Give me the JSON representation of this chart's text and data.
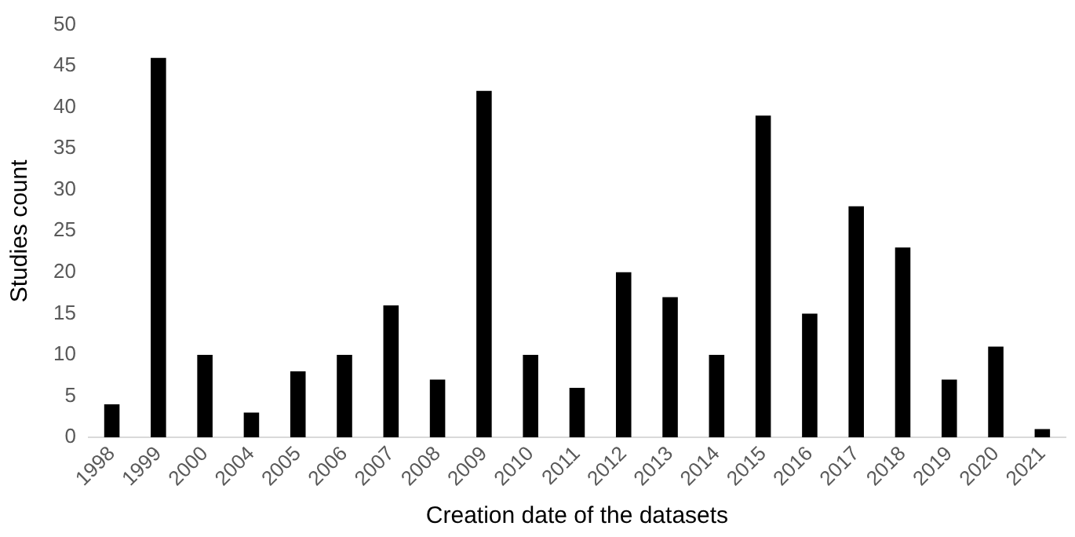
{
  "chart_data": {
    "type": "bar",
    "xlabel": "Creation date of the datasets",
    "ylabel": "Studies count",
    "categories": [
      "1998",
      "1999",
      "2000",
      "2004",
      "2005",
      "2006",
      "2007",
      "2008",
      "2009",
      "2010",
      "2011",
      "2012",
      "2013",
      "2014",
      "2015",
      "2016",
      "2017",
      "2018",
      "2019",
      "2020",
      "2021"
    ],
    "values": [
      4,
      46,
      10,
      3,
      8,
      10,
      16,
      7,
      42,
      10,
      6,
      20,
      17,
      10,
      39,
      15,
      28,
      23,
      7,
      11,
      1
    ],
    "color": "#000000",
    "ylim": [
      0,
      50
    ],
    "yticks": [
      0,
      5,
      10,
      15,
      20,
      25,
      30,
      35,
      40,
      45,
      50
    ],
    "grid": false,
    "legend": false
  }
}
